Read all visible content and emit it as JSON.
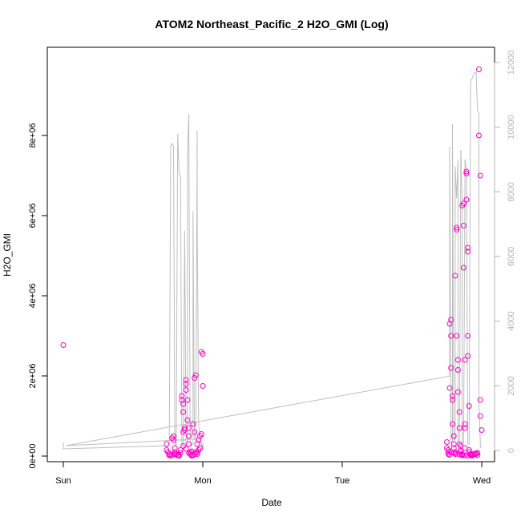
{
  "chart_data": {
    "type": "scatter",
    "title": "ATOM2 Northeast_Pacific_2 H2O_GMI (Log)",
    "xlabel": "Date",
    "ylabel": "H2O_GMI",
    "x_ticks": [
      "Sun",
      "Mon",
      "Tue",
      "Wed"
    ],
    "xlim": [
      0,
      3
    ],
    "ylim": [
      0,
      9800000
    ],
    "y_ticks": [
      0,
      2000000,
      4000000,
      6000000,
      8000000
    ],
    "y_tick_labels": [
      "0e+00",
      "2e+06",
      "4e+06",
      "6e+06",
      "8e+06"
    ],
    "y2lim": [
      0,
      12000
    ],
    "y2_ticks": [
      0,
      2000,
      4000,
      6000,
      8000,
      10000,
      12000
    ],
    "y2_tick_labels": [
      "0",
      "2000",
      "4000",
      "6000",
      "8000",
      "10000",
      "12000"
    ],
    "colors": {
      "points": "#ff00cc",
      "line": "#bebebe",
      "right_axis": "#b4b4b4"
    },
    "series": [
      {
        "kind": "points",
        "axis": "left",
        "x": [
          0.0,
          0.74,
          0.74,
          0.75,
          0.76,
          0.76,
          0.77,
          0.78,
          0.79,
          0.79,
          0.8,
          0.8,
          0.81,
          0.82,
          0.83,
          0.83,
          0.84,
          0.85,
          0.85,
          0.86,
          0.86,
          0.86,
          0.87,
          0.87,
          0.88,
          0.88,
          0.88,
          0.89,
          0.89,
          0.9,
          0.9,
          0.9,
          0.91,
          0.91,
          0.92,
          0.92,
          0.93,
          0.93,
          0.94,
          0.94,
          0.95,
          0.95,
          0.96,
          0.96,
          0.97,
          0.97,
          0.98,
          0.98,
          0.99,
          0.99,
          1.0,
          1.0,
          0.78,
          0.79,
          0.8,
          0.82,
          0.84,
          0.86,
          0.88,
          0.9,
          0.92,
          0.94,
          0.96,
          0.98,
          2.75,
          2.75,
          2.76,
          2.76,
          2.77,
          2.77,
          2.77,
          2.78,
          2.78,
          2.78,
          2.79,
          2.79,
          2.79,
          2.8,
          2.8,
          2.8,
          2.81,
          2.81,
          2.81,
          2.82,
          2.82,
          2.82,
          2.83,
          2.83,
          2.83,
          2.84,
          2.84,
          2.84,
          2.85,
          2.85,
          2.85,
          2.86,
          2.86,
          2.86,
          2.87,
          2.87,
          2.87,
          2.88,
          2.88,
          2.88,
          2.88,
          2.89,
          2.89,
          2.89,
          2.9,
          2.9,
          2.9,
          2.9,
          2.91,
          2.91,
          2.91,
          2.92,
          2.92,
          2.93,
          2.93,
          2.94,
          2.95,
          2.96,
          2.97,
          2.97,
          2.98,
          2.98,
          2.99,
          2.99,
          2.99,
          3.0,
          2.76,
          2.78,
          2.8,
          2.82,
          2.84,
          2.86,
          2.88,
          2.9,
          2.92,
          2.94,
          2.96
        ],
        "y": [
          2770000,
          300000,
          150000,
          100000,
          50000,
          20000,
          10000,
          450000,
          500000,
          400000,
          200000,
          100000,
          50000,
          20000,
          30000,
          10000,
          80000,
          1400000,
          1500000,
          1300000,
          1100000,
          600000,
          700000,
          650000,
          1650000,
          1800000,
          1900000,
          1400000,
          900000,
          700000,
          500000,
          300000,
          100000,
          50000,
          30000,
          10000,
          20000,
          800000,
          600000,
          1950000,
          2020000,
          100000,
          50000,
          300000,
          400000,
          150000,
          200000,
          500000,
          550000,
          2600000,
          2550000,
          1750000,
          30000,
          60000,
          40000,
          20000,
          150000,
          250000,
          180000,
          80000,
          120000,
          50000,
          90000,
          200000,
          350000,
          200000,
          100000,
          50000,
          30000,
          1700000,
          3300000,
          3400000,
          3000000,
          2200000,
          1500000,
          1400000,
          800000,
          500000,
          300000,
          200000,
          100000,
          50000,
          4500000,
          5650000,
          5700000,
          3000000,
          2400000,
          2150000,
          1600000,
          1100000,
          700000,
          300000,
          250000,
          150000,
          100000,
          50000,
          20000,
          6250000,
          6300000,
          5750000,
          4700000,
          2400000,
          800000,
          700000,
          200000,
          7100000,
          7050000,
          6400000,
          5200000,
          5100000,
          3000000,
          2500000,
          1250000,
          150000,
          100000,
          50000,
          30000,
          20000,
          10000,
          40000,
          60000,
          50000,
          20000,
          80000,
          9650000,
          8000000,
          7000000,
          1400000,
          1000000,
          650000,
          150000,
          100000,
          80000,
          60000,
          40000,
          30000,
          20000,
          10000,
          30000,
          50000,
          70000
        ]
      },
      {
        "kind": "line",
        "axis": "right",
        "x": [
          0.0,
          0.0,
          0.75,
          0.76,
          0.77,
          0.78,
          0.79,
          0.8,
          0.81,
          0.82,
          0.83,
          0.83,
          0.84,
          0.85,
          0.86,
          0.87,
          0.88,
          0.89,
          0.89,
          0.9,
          0.9,
          0.91,
          0.92,
          0.93,
          0.93,
          0.94,
          0.95,
          0.96,
          0.96,
          0.97,
          0.98,
          0.98,
          0.99,
          0.99,
          1.0,
          1.0,
          0.95,
          0.02,
          2.77,
          2.77,
          2.78,
          2.79,
          2.79,
          2.8,
          2.81,
          2.81,
          2.82,
          2.83,
          2.83,
          2.84,
          2.85,
          2.86,
          2.86,
          2.87,
          2.88,
          2.88,
          2.89,
          2.9,
          2.9,
          2.91,
          2.92,
          2.93,
          2.93,
          2.94,
          2.95,
          2.96,
          2.97,
          2.97,
          2.98,
          2.98,
          2.99,
          2.99,
          3.0
        ],
        "y": [
          250,
          50,
          150,
          200,
          9400,
          9500,
          9400,
          200,
          150,
          9800,
          8600,
          8600,
          8500,
          200,
          100,
          6800,
          200,
          300,
          9200,
          10400,
          9800,
          200,
          150,
          200,
          7400,
          400,
          300,
          9900,
          7300,
          800,
          500,
          300,
          200,
          200,
          100,
          200,
          350,
          150,
          2300,
          9400,
          200,
          300,
          10100,
          400,
          300,
          8800,
          7800,
          9000,
          300,
          200,
          9300,
          7800,
          300,
          200,
          8400,
          9000,
          8700,
          400,
          200,
          200,
          11400,
          11500,
          11500,
          11600,
          11700,
          11700,
          10500,
          10500,
          10400,
          1500,
          200,
          100,
          100
        ]
      }
    ]
  }
}
